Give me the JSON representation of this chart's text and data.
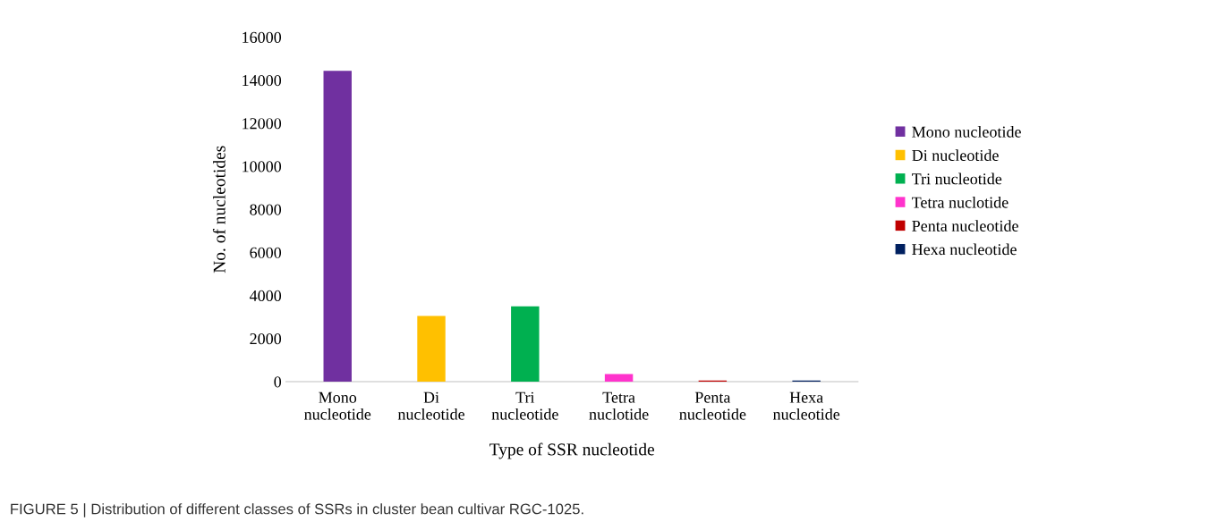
{
  "chart_data": {
    "type": "bar",
    "xlabel": "Type of SSR nucleotide",
    "ylabel": "No. of nucleotides",
    "categories": [
      "Mono nucleotide",
      "Di nucleotide",
      "Tri nucleotide",
      "Tetra nuclotide",
      "Penta nucleotide",
      "Hexa nucleotide"
    ],
    "series": [
      {
        "name": "Mono nucleotide",
        "color": "#7030a0",
        "values": [
          14430,
          null,
          null,
          null,
          null,
          null
        ]
      },
      {
        "name": "Di nucleotide",
        "color": "#ffc000",
        "values": [
          null,
          3050,
          null,
          null,
          null,
          null
        ]
      },
      {
        "name": "Tri nucleotide",
        "color": "#00b050",
        "values": [
          null,
          null,
          3500,
          null,
          null,
          null
        ]
      },
      {
        "name": "Tetra nuclotide",
        "color": "#ff33cc",
        "values": [
          null,
          null,
          null,
          350,
          null,
          null
        ]
      },
      {
        "name": "Penta nucleotide",
        "color": "#c00000",
        "values": [
          null,
          null,
          null,
          null,
          50,
          null
        ]
      },
      {
        "name": "Hexa nucleotide",
        "color": "#002060",
        "values": [
          null,
          null,
          null,
          null,
          null,
          50
        ]
      }
    ],
    "ylim": [
      0,
      16000
    ],
    "yticks": [
      0,
      2000,
      4000,
      6000,
      8000,
      10000,
      12000,
      14000,
      16000
    ],
    "grid": false,
    "legend": "right",
    "annotations": [
      "FIGURE 5 | Distribution of different classes of SSRs in cluster bean cultivar RGC-1025."
    ]
  }
}
